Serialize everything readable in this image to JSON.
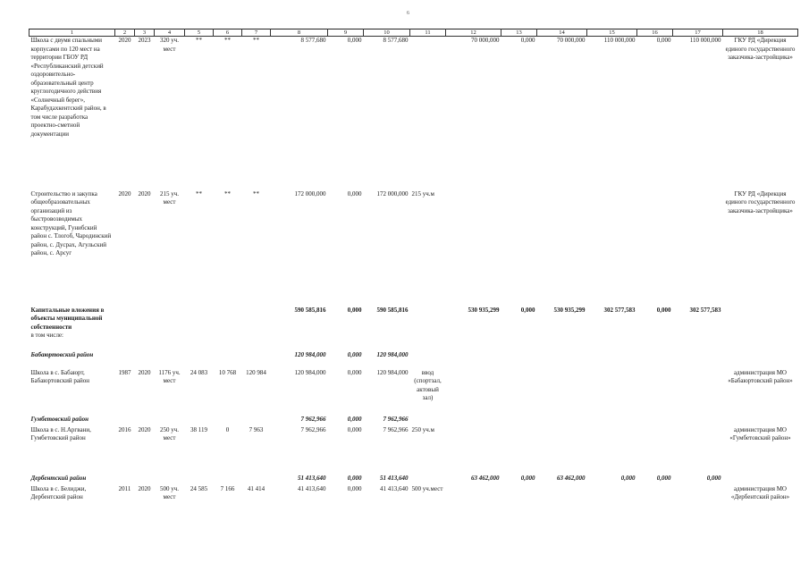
{
  "page_number": "6",
  "header": [
    "1",
    "2",
    "3",
    "4",
    "5",
    "6",
    "7",
    "8",
    "9",
    "10",
    "11",
    "12",
    "13",
    "14",
    "15",
    "16",
    "17",
    "18"
  ],
  "rows": [
    {
      "c1": "Школа с двумя спальными корпусами по 120 мест на территории ГБОУ РД «Республиканский детский оздоровительно-образовательный центр круглогодичного действия «Солнечный берег», Карабудахкентский район, в том числе разработка проектно-сметной документации",
      "c2": "2020",
      "c3": "2023",
      "c4": "320 уч. мест",
      "c5": "**",
      "c6": "**",
      "c7": "**",
      "c8": "8 577,680",
      "c9": "0,000",
      "c10": "8 577,680",
      "c11": "",
      "c12": "70 000,000",
      "c13": "0,000",
      "c14": "70 000,000",
      "c15": "110 000,000",
      "c16": "0,000",
      "c17": "110 000,000",
      "c18": "ГКУ РД «Дирекция единого государственного заказчика-застройщика»"
    },
    {
      "c1": "Строительство и закупка общеобразовательных организаций из быстровозводимых конструкций, Гунибский район с. Тлогоб, Чародинский район, с. Дусрах, Агульский район, с. Арсуг",
      "c2": "2020",
      "c3": "2020",
      "c4": "215 уч. мест",
      "c5": "**",
      "c6": "**",
      "c7": "**",
      "c8": "172 000,000",
      "c9": "0,000",
      "c10": "172 000,000",
      "c11": "215 уч.м",
      "c12": "",
      "c13": "",
      "c14": "",
      "c15": "",
      "c16": "",
      "c17": "",
      "c18": "ГКУ РД «Дирекция единого государственного заказчика-застройщика»"
    },
    {
      "c1": "Капитальные вложения в объекты муниципальной собственности",
      "c1b": "в том числе:",
      "c2": "",
      "c3": "",
      "c4": "",
      "c5": "",
      "c6": "",
      "c7": "",
      "c8": "590 585,816",
      "c9": "0,000",
      "c10": "590 585,816",
      "c11": "",
      "c12": "530 935,299",
      "c13": "0,000",
      "c14": "530 935,299",
      "c15": "302 577,583",
      "c16": "0,000",
      "c17": "302 577,583",
      "c18": ""
    },
    {
      "c1": "Бабаюртовский район",
      "c8": "120 984,000",
      "c9": "0,000",
      "c10": "120 984,000"
    },
    {
      "c1": "Школа в с. Бабаюрт, Бабаюртовский район",
      "c2": "1987",
      "c3": "2020",
      "c4": "1176 уч. мест",
      "c5": "24 083",
      "c6": "10 768",
      "c7": "120 984",
      "c8": "120 984,000",
      "c9": "0,000",
      "c10": "120 984,000",
      "c11": "ввод (спортзал, актовый зал)",
      "c18": "администрация МО «Бабаюртовский район»"
    },
    {
      "c1": "Гумбетовский район",
      "c8": "7 962,966",
      "c9": "0,000",
      "c10": "7 962,966"
    },
    {
      "c1": "Школа в с. Н.Аргвани, Гумбетовский район",
      "c2": "2016",
      "c3": "2020",
      "c4": "250 уч. мест",
      "c5": "38 119",
      "c6": "0",
      "c7": "7 963",
      "c8": "7 962,966",
      "c9": "0,000",
      "c10": "7 962,966",
      "c11": "250 уч.м",
      "c18": "администрация МО «Гумбетовский район»"
    },
    {
      "c1": "Дербентский район",
      "c8": "51 413,640",
      "c9": "0,000",
      "c10": "51 413,640",
      "c12": "63 462,000",
      "c13": "0,000",
      "c14": "63 462,000",
      "c15": "0,000",
      "c16": "0,000",
      "c17": "0,000"
    },
    {
      "c1": "Школа в с. Белиджи, Дербентский район",
      "c2": "2011",
      "c3": "2020",
      "c4": "500 уч. мест",
      "c5": "24 585",
      "c6": "7 166",
      "c7": "41 414",
      "c8": "41 413,640",
      "c9": "0,000",
      "c10": "41 413,640",
      "c11": "500 уч.мест",
      "c18": "администрация МО «Дербентский район»"
    }
  ]
}
